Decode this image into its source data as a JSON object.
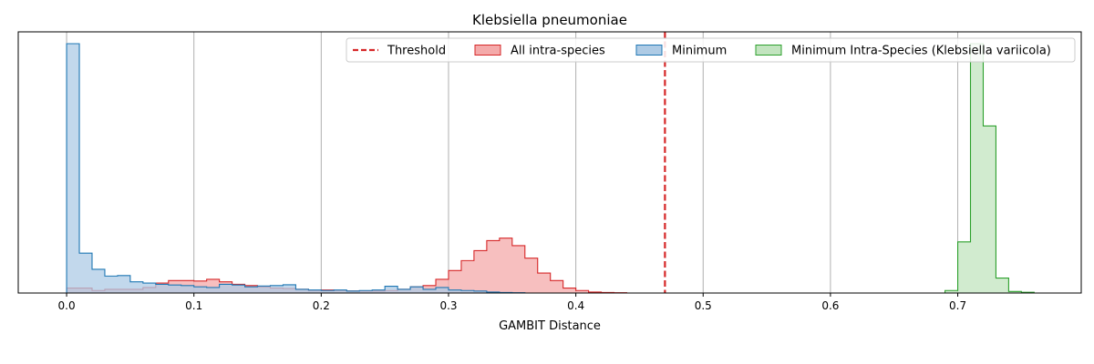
{
  "chart_data": {
    "type": "histogram",
    "title": "Klebsiella pneumoniae",
    "xlabel": "GAMBIT Distance",
    "ylabel": "",
    "xlim": [
      -0.038,
      0.797
    ],
    "ylim": [
      0,
      1.0
    ],
    "x_ticks": [
      0.0,
      0.1,
      0.2,
      0.3,
      0.4,
      0.5,
      0.6,
      0.7
    ],
    "x_tick_labels": [
      "0.0",
      "0.1",
      "0.2",
      "0.3",
      "0.4",
      "0.5",
      "0.6",
      "0.7"
    ],
    "y_tick_labels_visible": false,
    "grid": "x",
    "bin_width": 0.01,
    "threshold": 0.47,
    "legend_position": "top-right",
    "legend_entries": [
      "Threshold",
      "All intra-species",
      "Minimum",
      "Minimum Intra-Species (Klebsiella variicola)"
    ],
    "series": [
      {
        "name": "All intra-species",
        "kind": "step-filled",
        "color": "#d62728",
        "fill": "#f4aaaa",
        "bin_start": 0.0,
        "values": [
          0.02,
          0.02,
          0.01,
          0.015,
          0.015,
          0.015,
          0.022,
          0.04,
          0.05,
          0.05,
          0.048,
          0.055,
          0.045,
          0.035,
          0.03,
          0.025,
          0.02,
          0.018,
          0.015,
          0.01,
          0.012,
          0.01,
          0.008,
          0.008,
          0.008,
          0.01,
          0.015,
          0.025,
          0.03,
          0.055,
          0.09,
          0.13,
          0.17,
          0.21,
          0.22,
          0.19,
          0.14,
          0.08,
          0.05,
          0.02,
          0.01,
          0.004,
          0.002,
          0.001
        ]
      },
      {
        "name": "Minimum",
        "kind": "step-filled",
        "color": "#1f77b4",
        "fill": "#aecbe5",
        "bin_start": 0.0,
        "values": [
          1.0,
          0.16,
          0.095,
          0.068,
          0.07,
          0.045,
          0.04,
          0.035,
          0.032,
          0.03,
          0.025,
          0.022,
          0.035,
          0.032,
          0.025,
          0.028,
          0.03,
          0.033,
          0.015,
          0.012,
          0.01,
          0.012,
          0.008,
          0.01,
          0.012,
          0.027,
          0.015,
          0.025,
          0.015,
          0.022,
          0.012,
          0.01,
          0.008,
          0.004,
          0.002,
          0.001
        ]
      },
      {
        "name": "Minimum Intra-Species (Klebsiella variicola)",
        "kind": "step-filled",
        "color": "#2ca02c",
        "fill": "#c2e4bf",
        "bin_start": 0.69,
        "values": [
          0.01,
          0.205,
          1.0,
          0.67,
          0.06,
          0.006,
          0.003
        ]
      }
    ],
    "colors": {
      "threshold": "#d62728",
      "grid": "#b0b0b0",
      "axis": "#000000",
      "background": "#ffffff"
    }
  }
}
